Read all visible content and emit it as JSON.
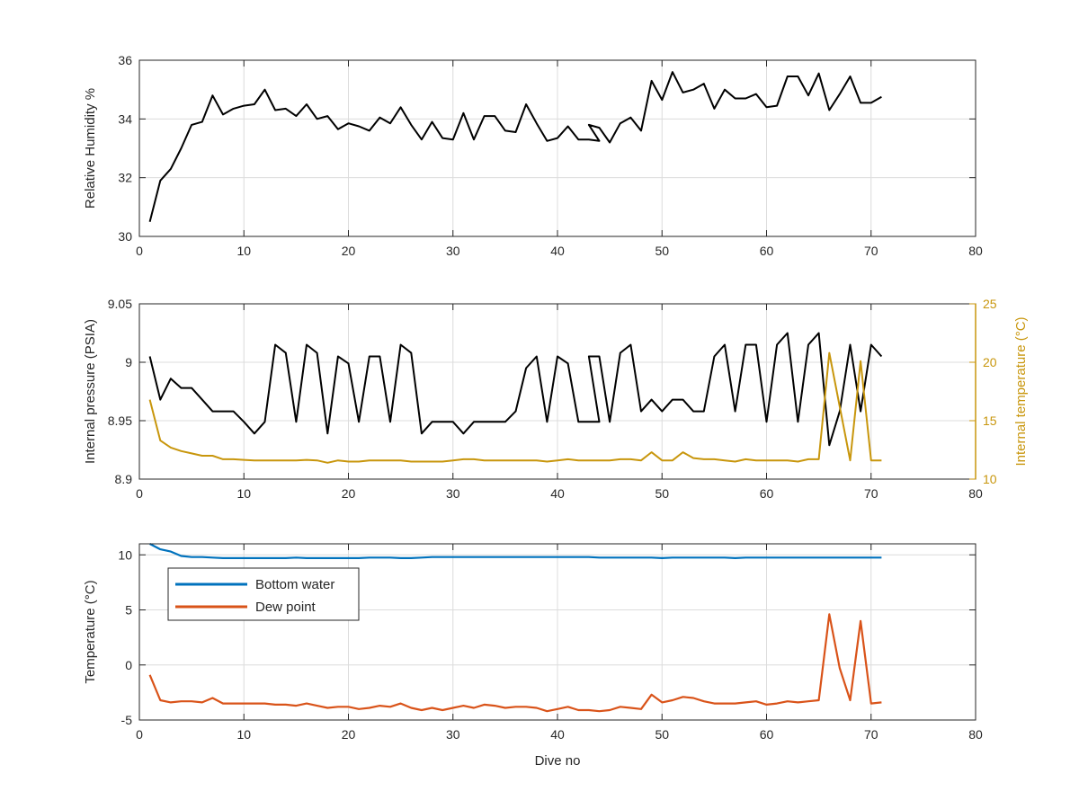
{
  "colors": {
    "black_series": "#000000",
    "internal_temperature": "#c8960c",
    "bottom_water": "#0072bd",
    "dew_point": "#d95319",
    "grid": "#dcdcdc",
    "axis": "#262626"
  },
  "chart_data": [
    {
      "type": "line",
      "xlabel": "",
      "ylabel": "Relative Humidity %",
      "xlim": [
        0,
        80
      ],
      "ylim": [
        30,
        36
      ],
      "xticks": [
        "0",
        "10",
        "20",
        "30",
        "40",
        "50",
        "60",
        "70",
        "80"
      ],
      "yticks": [
        "30",
        "32",
        "34",
        "36"
      ],
      "grid": true,
      "series": [
        {
          "color": "#000000",
          "x": [
            1,
            2,
            3,
            4,
            5,
            6,
            7,
            8,
            9,
            10,
            11,
            12,
            13,
            14,
            15,
            16,
            17,
            18,
            19,
            20,
            21,
            22,
            23,
            24,
            25,
            26,
            27,
            28,
            29,
            30,
            31,
            32,
            33,
            34,
            35,
            36,
            37,
            38,
            39,
            40,
            41,
            42,
            43,
            44,
            43,
            44,
            45,
            46,
            47,
            48,
            49,
            50,
            51,
            52,
            53,
            54,
            55,
            56,
            57,
            58,
            59,
            60,
            61,
            62,
            63,
            64,
            65,
            66,
            67,
            68,
            69,
            70,
            71
          ],
          "y": [
            30.5,
            31.9,
            32.3,
            33.0,
            33.8,
            33.9,
            34.8,
            34.15,
            34.35,
            34.45,
            34.5,
            35.0,
            34.3,
            34.35,
            34.1,
            34.5,
            34.0,
            34.1,
            33.65,
            33.85,
            33.75,
            33.6,
            34.05,
            33.85,
            34.4,
            33.8,
            33.3,
            33.9,
            33.35,
            33.3,
            34.2,
            33.3,
            34.1,
            34.1,
            33.6,
            33.55,
            34.5,
            33.85,
            33.25,
            33.35,
            33.75,
            33.3,
            33.3,
            33.25,
            33.8,
            33.7,
            33.2,
            33.85,
            34.05,
            33.6,
            35.3,
            34.65,
            35.6,
            34.9,
            35.0,
            35.2,
            34.35,
            35.0,
            34.7,
            34.7,
            34.85,
            34.4,
            34.45,
            35.45,
            35.45,
            34.8,
            35.55,
            34.3,
            34.85,
            35.45,
            34.55,
            34.55,
            34.75
          ]
        }
      ]
    },
    {
      "type": "line",
      "xlabel": "",
      "ylabel": "Internal pressure (PSIA)",
      "y2label": "Internal temperature (°C)",
      "xlim": [
        0,
        80
      ],
      "ylim": [
        8.9,
        9.05
      ],
      "y2lim": [
        10,
        25
      ],
      "xticks": [
        "0",
        "10",
        "20",
        "30",
        "40",
        "50",
        "60",
        "70",
        "80"
      ],
      "yticks": [
        "8.9",
        "8.95",
        "9",
        "9.05"
      ],
      "y2ticks": [
        "10",
        "15",
        "20",
        "25"
      ],
      "grid": true,
      "series": [
        {
          "axis": "left",
          "color": "#000000",
          "x": [
            1,
            2,
            3,
            4,
            5,
            6,
            7,
            8,
            9,
            10,
            11,
            12,
            13,
            14,
            15,
            16,
            17,
            18,
            19,
            20,
            21,
            22,
            23,
            24,
            25,
            26,
            27,
            28,
            29,
            30,
            31,
            32,
            33,
            34,
            35,
            36,
            37,
            38,
            39,
            40,
            41,
            42,
            43,
            44,
            43,
            44,
            45,
            46,
            47,
            48,
            49,
            50,
            51,
            52,
            53,
            54,
            55,
            56,
            57,
            58,
            59,
            60,
            61,
            62,
            63,
            64,
            65,
            66,
            67,
            68,
            69,
            70,
            71
          ],
          "y": [
            9.005,
            8.968,
            8.986,
            8.978,
            8.978,
            8.968,
            8.958,
            8.958,
            8.958,
            8.949,
            8.939,
            8.949,
            9.015,
            9.008,
            8.949,
            9.015,
            9.008,
            8.939,
            9.005,
            8.999,
            8.949,
            9.005,
            9.005,
            8.949,
            9.015,
            9.008,
            8.939,
            8.949,
            8.949,
            8.949,
            8.939,
            8.949,
            8.949,
            8.949,
            8.949,
            8.958,
            8.995,
            9.005,
            8.949,
            9.005,
            8.999,
            8.949,
            8.949,
            8.949,
            9.005,
            9.005,
            8.949,
            9.008,
            9.015,
            8.958,
            8.968,
            8.958,
            8.968,
            8.968,
            8.958,
            8.958,
            9.005,
            9.015,
            8.958,
            9.015,
            9.015,
            8.949,
            9.015,
            9.025,
            8.949,
            9.015,
            9.025,
            8.929,
            8.958,
            9.015,
            8.958,
            9.015,
            9.005
          ]
        },
        {
          "axis": "right",
          "color": "#c8960c",
          "x": [
            1,
            2,
            3,
            4,
            5,
            6,
            7,
            8,
            9,
            10,
            11,
            12,
            13,
            14,
            15,
            16,
            17,
            18,
            19,
            20,
            21,
            22,
            23,
            24,
            25,
            26,
            27,
            28,
            29,
            30,
            31,
            32,
            33,
            34,
            35,
            36,
            37,
            38,
            39,
            40,
            41,
            42,
            43,
            44,
            45,
            46,
            47,
            48,
            49,
            50,
            51,
            52,
            53,
            54,
            55,
            56,
            57,
            58,
            59,
            60,
            61,
            62,
            63,
            64,
            65,
            66,
            67,
            68,
            69,
            70,
            71
          ],
          "y": [
            16.8,
            13.3,
            12.7,
            12.4,
            12.2,
            12.0,
            12.0,
            11.7,
            11.7,
            11.65,
            11.6,
            11.6,
            11.6,
            11.6,
            11.6,
            11.65,
            11.6,
            11.4,
            11.6,
            11.5,
            11.5,
            11.6,
            11.6,
            11.6,
            11.6,
            11.5,
            11.5,
            11.5,
            11.5,
            11.6,
            11.7,
            11.7,
            11.6,
            11.6,
            11.6,
            11.6,
            11.6,
            11.6,
            11.5,
            11.6,
            11.7,
            11.6,
            11.6,
            11.6,
            11.6,
            11.7,
            11.7,
            11.6,
            12.3,
            11.6,
            11.6,
            12.3,
            11.8,
            11.7,
            11.7,
            11.6,
            11.5,
            11.7,
            11.6,
            11.6,
            11.6,
            11.6,
            11.5,
            11.7,
            11.7,
            20.8,
            16.2,
            11.6,
            20.1,
            11.6,
            11.6
          ]
        }
      ]
    },
    {
      "type": "line",
      "xlabel": "Dive no",
      "ylabel": "Temperature (°C)",
      "xlim": [
        0,
        80
      ],
      "ylim": [
        -5,
        11
      ],
      "xticks": [
        "0",
        "10",
        "20",
        "30",
        "40",
        "50",
        "60",
        "70",
        "80"
      ],
      "yticks": [
        "-5",
        "0",
        "5",
        "10"
      ],
      "grid": true,
      "legend_position": "top-left",
      "series": [
        {
          "name": "Bottom water",
          "color": "#0072bd",
          "x": [
            1,
            2,
            3,
            4,
            5,
            6,
            7,
            8,
            9,
            10,
            11,
            12,
            13,
            14,
            15,
            16,
            17,
            18,
            19,
            20,
            21,
            22,
            23,
            24,
            25,
            26,
            27,
            28,
            29,
            30,
            31,
            32,
            33,
            34,
            35,
            36,
            37,
            38,
            39,
            40,
            41,
            42,
            43,
            44,
            45,
            46,
            47,
            48,
            49,
            50,
            51,
            52,
            53,
            54,
            55,
            56,
            57,
            58,
            59,
            60,
            61,
            62,
            63,
            64,
            65,
            66,
            67,
            68,
            69,
            70,
            71
          ],
          "y": [
            11.0,
            10.5,
            10.3,
            9.9,
            9.8,
            9.8,
            9.75,
            9.7,
            9.7,
            9.7,
            9.7,
            9.7,
            9.7,
            9.7,
            9.75,
            9.7,
            9.7,
            9.7,
            9.7,
            9.7,
            9.7,
            9.75,
            9.75,
            9.75,
            9.7,
            9.7,
            9.75,
            9.8,
            9.8,
            9.8,
            9.8,
            9.8,
            9.8,
            9.8,
            9.8,
            9.8,
            9.8,
            9.8,
            9.8,
            9.8,
            9.8,
            9.8,
            9.8,
            9.75,
            9.75,
            9.75,
            9.75,
            9.75,
            9.75,
            9.7,
            9.75,
            9.75,
            9.75,
            9.75,
            9.75,
            9.75,
            9.7,
            9.75,
            9.75,
            9.75,
            9.75,
            9.75,
            9.75,
            9.75,
            9.75,
            9.75,
            9.75,
            9.75,
            9.75,
            9.75,
            9.75
          ]
        },
        {
          "name": "Dew point",
          "color": "#d95319",
          "x": [
            1,
            2,
            3,
            4,
            5,
            6,
            7,
            8,
            9,
            10,
            11,
            12,
            13,
            14,
            15,
            16,
            17,
            18,
            19,
            20,
            21,
            22,
            23,
            24,
            25,
            26,
            27,
            28,
            29,
            30,
            31,
            32,
            33,
            34,
            35,
            36,
            37,
            38,
            39,
            40,
            41,
            42,
            43,
            44,
            45,
            46,
            47,
            48,
            49,
            50,
            51,
            52,
            53,
            54,
            55,
            56,
            57,
            58,
            59,
            60,
            61,
            62,
            63,
            64,
            65,
            66,
            67,
            68,
            69,
            70,
            71
          ],
          "y": [
            -0.9,
            -3.2,
            -3.4,
            -3.3,
            -3.3,
            -3.4,
            -3.0,
            -3.5,
            -3.5,
            -3.5,
            -3.5,
            -3.5,
            -3.6,
            -3.6,
            -3.7,
            -3.5,
            -3.7,
            -3.9,
            -3.8,
            -3.8,
            -4.0,
            -3.9,
            -3.7,
            -3.8,
            -3.5,
            -3.9,
            -4.1,
            -3.9,
            -4.1,
            -3.9,
            -3.7,
            -3.9,
            -3.6,
            -3.7,
            -3.9,
            -3.8,
            -3.8,
            -3.9,
            -4.2,
            -4.0,
            -3.8,
            -4.1,
            -4.1,
            -4.2,
            -4.1,
            -3.8,
            -3.9,
            -4.0,
            -2.7,
            -3.4,
            -3.2,
            -2.9,
            -3.0,
            -3.3,
            -3.5,
            -3.5,
            -3.5,
            -3.4,
            -3.3,
            -3.6,
            -3.5,
            -3.3,
            -3.4,
            -3.3,
            -3.2,
            4.6,
            -0.3,
            -3.2,
            4.0,
            -3.5,
            -3.4
          ]
        }
      ]
    }
  ]
}
